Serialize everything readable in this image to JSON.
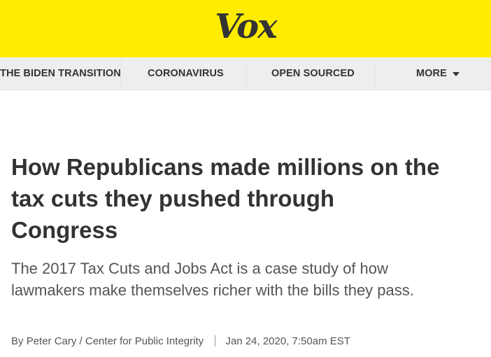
{
  "header": {
    "logo_text": "Vox",
    "background_color": "#ffec00"
  },
  "nav": {
    "items": [
      {
        "label": "THE BIDEN TRANSITION"
      },
      {
        "label": "CORONAVIRUS"
      },
      {
        "label": "OPEN SOURCED"
      },
      {
        "label": "MORE"
      }
    ],
    "more_icon": "caret-down-icon"
  },
  "article": {
    "headline": "How Republicans made millions on the tax cuts they pushed through Congress",
    "dek": "The 2017 Tax Cuts and Jobs Act is a case study of how lawmakers make themselves richer with the bills they pass.",
    "byline": {
      "prefix": "By",
      "author": "Peter Cary / Center for Public Integrity",
      "date": "Jan 24, 2020, 7:50am EST"
    }
  }
}
